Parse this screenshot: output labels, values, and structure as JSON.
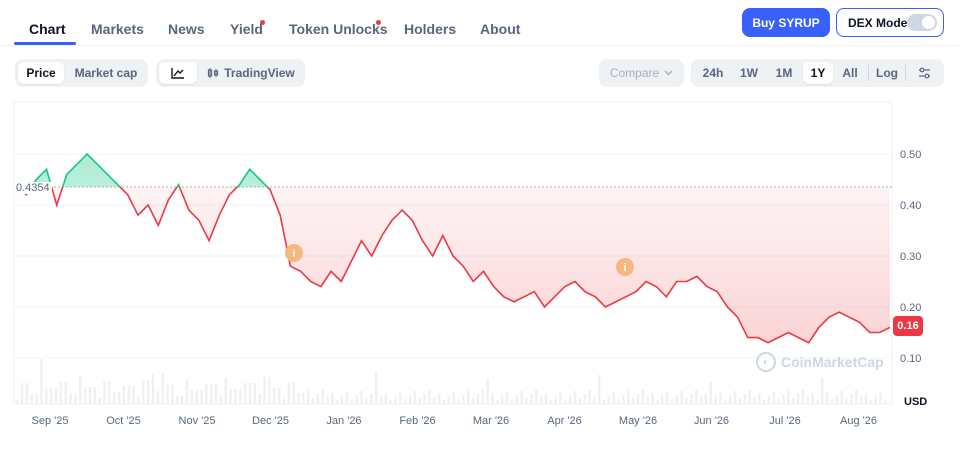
{
  "tabs": [
    {
      "label": "Chart",
      "active": true
    },
    {
      "label": "Markets"
    },
    {
      "label": "News"
    },
    {
      "label": "Yield",
      "dot": true
    },
    {
      "label": "Token Unlocks",
      "dot": true
    },
    {
      "label": "Holders"
    },
    {
      "label": "About"
    }
  ],
  "buy_label": "Buy SYRUP",
  "dex_label": "DEX Mode",
  "price_toggle": [
    "Price",
    "Market cap"
  ],
  "chart_view": [
    "",
    "TradingView"
  ],
  "compare_label": "Compare",
  "ranges": [
    "24h",
    "1W",
    "1M",
    "1Y",
    "All",
    "Log"
  ],
  "active_range": "1Y",
  "colors": {
    "up": "#16c784",
    "down": "#ea3943",
    "accent": "#3861fb"
  },
  "chart_data": {
    "type": "area",
    "x_tick_labels": [
      "Sep '25",
      "Oct '25",
      "Nov '25",
      "Dec '25",
      "Jan '26",
      "Feb '26",
      "Mar '26",
      "Apr '26",
      "May '26",
      "Jun '26",
      "Jul '26",
      "Aug '26"
    ],
    "y_ticks": [
      0.5,
      0.4,
      0.3,
      0.2,
      0.1
    ],
    "ylim": [
      0.08,
      0.58
    ],
    "yunit": "USD",
    "reference_value": 0.4354,
    "reference_label": "0.4354",
    "current_price_label": "0.16",
    "event_markers": [
      "i",
      "i"
    ],
    "watermark": "CoinMarketCap",
    "series": [
      {
        "values": [
          0.44,
          0.42,
          0.45,
          0.47,
          0.4,
          0.46,
          0.48,
          0.5,
          0.48,
          0.46,
          0.44,
          0.42,
          0.38,
          0.4,
          0.36,
          0.41,
          0.44,
          0.39,
          0.37,
          0.33,
          0.38,
          0.42,
          0.44,
          0.47,
          0.45,
          0.43,
          0.38,
          0.28,
          0.27,
          0.25,
          0.24,
          0.27,
          0.25,
          0.29,
          0.33,
          0.3,
          0.34,
          0.37,
          0.39,
          0.37,
          0.33,
          0.3,
          0.34,
          0.3,
          0.28,
          0.25,
          0.27,
          0.24,
          0.22,
          0.21,
          0.22,
          0.23,
          0.2,
          0.22,
          0.24,
          0.25,
          0.23,
          0.22,
          0.2,
          0.21,
          0.22,
          0.23,
          0.25,
          0.24,
          0.22,
          0.25,
          0.25,
          0.26,
          0.24,
          0.23,
          0.2,
          0.18,
          0.14,
          0.14,
          0.13,
          0.14,
          0.15,
          0.14,
          0.13,
          0.16,
          0.18,
          0.19,
          0.18,
          0.17,
          0.15,
          0.15,
          0.16
        ]
      }
    ]
  }
}
